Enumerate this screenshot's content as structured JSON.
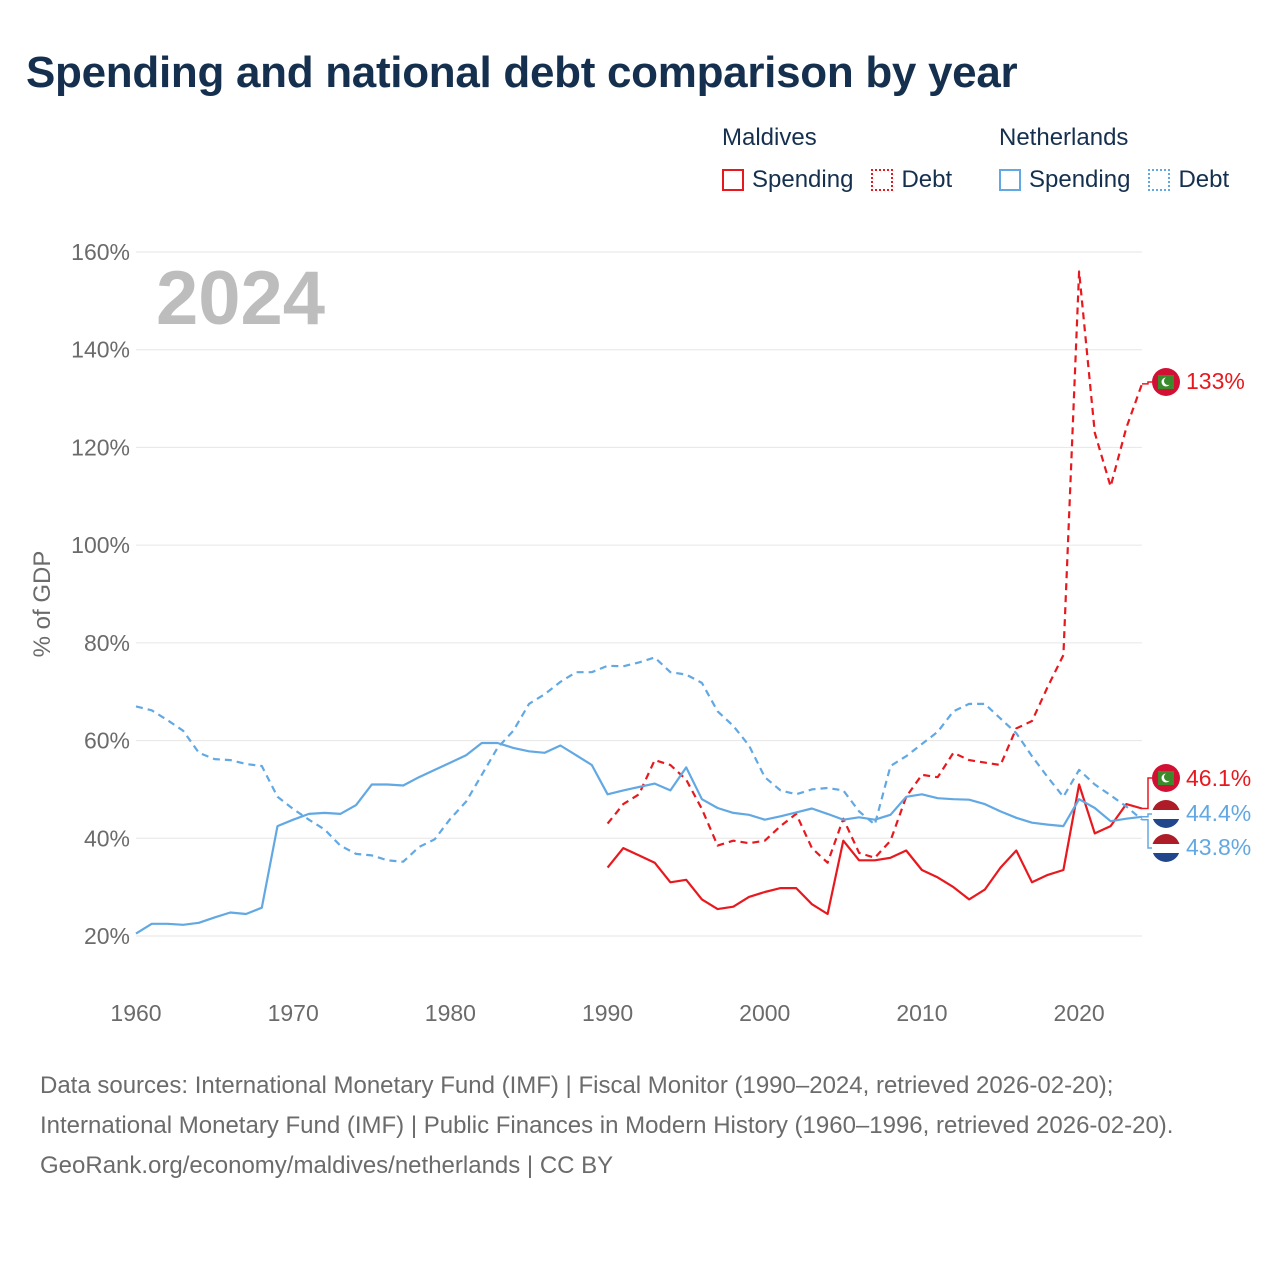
{
  "title": "Spending and national debt comparison by year",
  "legend": {
    "groups": [
      {
        "name": "Maldives",
        "items": [
          {
            "label": "Spending",
            "color": "#e8191e",
            "style": "solid"
          },
          {
            "label": "Debt",
            "color": "#e8191e",
            "style": "dotted"
          }
        ]
      },
      {
        "name": "Netherlands",
        "items": [
          {
            "label": "Spending",
            "color": "#62a8e3",
            "style": "solid"
          },
          {
            "label": "Debt",
            "color": "#62a8e3",
            "style": "dotted"
          }
        ]
      }
    ]
  },
  "footer": {
    "sources": "Data sources: International Monetary Fund (IMF) | Fiscal Monitor (1990–2024, retrieved 2026-02-20); International Monetary Fund (IMF) | Public Finances in Modern History (1960–1996, retrieved 2026-02-20).",
    "credit": "GeoRank.org/economy/maldives/netherlands | CC BY"
  },
  "chart_data": {
    "type": "line",
    "title": "Spending and national debt comparison by year",
    "year_watermark": "2024",
    "xlabel": "",
    "ylabel": "% of GDP",
    "xlim": [
      1960,
      2024
    ],
    "ylim": [
      10,
      162
    ],
    "x_ticks": [
      1960,
      1970,
      1980,
      1990,
      2000,
      2010,
      2020
    ],
    "y_ticks": [
      20,
      40,
      60,
      80,
      100,
      120,
      140,
      160
    ],
    "y_tick_labels": [
      "20%",
      "40%",
      "60%",
      "80%",
      "100%",
      "120%",
      "140%",
      "160%"
    ],
    "grid": true,
    "series": [
      {
        "name": "Maldives Spending",
        "color": "#e8191e",
        "dash": "solid",
        "end_label": "46.1%",
        "points": [
          [
            1990,
            34
          ],
          [
            1991,
            38
          ],
          [
            1992,
            36.5
          ],
          [
            1993,
            35
          ],
          [
            1994,
            31
          ],
          [
            1995,
            31.5
          ],
          [
            1996,
            27.5
          ],
          [
            1997,
            25.5
          ],
          [
            1998,
            26
          ],
          [
            1999,
            28
          ],
          [
            2000,
            29
          ],
          [
            2001,
            29.8
          ],
          [
            2002,
            29.8
          ],
          [
            2003,
            26.5
          ],
          [
            2004,
            24.5
          ],
          [
            2005,
            39.5
          ],
          [
            2006,
            35.5
          ],
          [
            2007,
            35.5
          ],
          [
            2008,
            36
          ],
          [
            2009,
            37.5
          ],
          [
            2010,
            33.5
          ],
          [
            2011,
            32
          ],
          [
            2012,
            30
          ],
          [
            2013,
            27.5
          ],
          [
            2014,
            29.5
          ],
          [
            2015,
            34
          ],
          [
            2016,
            37.5
          ],
          [
            2017,
            31
          ],
          [
            2018,
            32.5
          ],
          [
            2019,
            33.5
          ],
          [
            2020,
            51
          ],
          [
            2021,
            41
          ],
          [
            2022,
            42.5
          ],
          [
            2023,
            47
          ],
          [
            2024,
            46.1
          ]
        ]
      },
      {
        "name": "Maldives Debt",
        "color": "#e8191e",
        "dash": "dashed",
        "end_label": "133%",
        "points": [
          [
            1990,
            43
          ],
          [
            1991,
            47
          ],
          [
            1992,
            49
          ],
          [
            1993,
            56
          ],
          [
            1994,
            55
          ],
          [
            1995,
            52
          ],
          [
            1996,
            46
          ],
          [
            1997,
            38.5
          ],
          [
            1998,
            39.5
          ],
          [
            1999,
            39
          ],
          [
            2000,
            39.5
          ],
          [
            2001,
            42.5
          ],
          [
            2002,
            45
          ],
          [
            2003,
            38
          ],
          [
            2004,
            35
          ],
          [
            2005,
            44
          ],
          [
            2006,
            37
          ],
          [
            2007,
            36
          ],
          [
            2008,
            39.5
          ],
          [
            2009,
            48.5
          ],
          [
            2010,
            53
          ],
          [
            2011,
            52.5
          ],
          [
            2012,
            57.5
          ],
          [
            2013,
            56
          ],
          [
            2014,
            55.5
          ],
          [
            2015,
            55
          ],
          [
            2016,
            62.5
          ],
          [
            2017,
            64
          ],
          [
            2018,
            71
          ],
          [
            2019,
            77.5
          ],
          [
            2020,
            156
          ],
          [
            2021,
            123
          ],
          [
            2022,
            112
          ],
          [
            2023,
            124
          ],
          [
            2024,
            133
          ]
        ]
      },
      {
        "name": "Netherlands Spending",
        "color": "#62a8e3",
        "dash": "solid",
        "end_label": "44.4%",
        "points": [
          [
            1960,
            20.5
          ],
          [
            1961,
            22.5
          ],
          [
            1962,
            22.5
          ],
          [
            1963,
            22.3
          ],
          [
            1964,
            22.7
          ],
          [
            1965,
            23.8
          ],
          [
            1966,
            24.8
          ],
          [
            1967,
            24.5
          ],
          [
            1968,
            25.8
          ],
          [
            1969,
            42.5
          ],
          [
            1970,
            43.8
          ],
          [
            1971,
            45
          ],
          [
            1972,
            45.2
          ],
          [
            1973,
            45
          ],
          [
            1974,
            46.8
          ],
          [
            1975,
            51
          ],
          [
            1976,
            51
          ],
          [
            1977,
            50.8
          ],
          [
            1978,
            52.5
          ],
          [
            1979,
            54
          ],
          [
            1980,
            55.5
          ],
          [
            1981,
            57
          ],
          [
            1982,
            59.5
          ],
          [
            1983,
            59.5
          ],
          [
            1984,
            58.5
          ],
          [
            1985,
            57.8
          ],
          [
            1986,
            57.5
          ],
          [
            1987,
            59
          ],
          [
            1988,
            57
          ],
          [
            1989,
            55
          ],
          [
            1990,
            49
          ],
          [
            1991,
            49.8
          ],
          [
            1992,
            50.5
          ],
          [
            1993,
            51.2
          ],
          [
            1994,
            49.8
          ],
          [
            1995,
            54.5
          ],
          [
            1996,
            48
          ],
          [
            1997,
            46.2
          ],
          [
            1998,
            45.2
          ],
          [
            1999,
            44.8
          ],
          [
            2000,
            43.8
          ],
          [
            2001,
            44.5
          ],
          [
            2002,
            45.3
          ],
          [
            2003,
            46.1
          ],
          [
            2004,
            45
          ],
          [
            2005,
            43.8
          ],
          [
            2006,
            44.3
          ],
          [
            2007,
            43.8
          ],
          [
            2008,
            44.8
          ],
          [
            2009,
            48.5
          ],
          [
            2010,
            49
          ],
          [
            2011,
            48.2
          ],
          [
            2012,
            48
          ],
          [
            2013,
            47.9
          ],
          [
            2014,
            47
          ],
          [
            2015,
            45.5
          ],
          [
            2016,
            44.2
          ],
          [
            2017,
            43.2
          ],
          [
            2018,
            42.8
          ],
          [
            2019,
            42.5
          ],
          [
            2020,
            48
          ],
          [
            2021,
            46.2
          ],
          [
            2022,
            43.5
          ],
          [
            2023,
            44
          ],
          [
            2024,
            44.4
          ]
        ]
      },
      {
        "name": "Netherlands Debt",
        "color": "#62a8e3",
        "dash": "dashed",
        "end_label": "43.8%",
        "points": [
          [
            1960,
            67
          ],
          [
            1961,
            66.2
          ],
          [
            1962,
            64.2
          ],
          [
            1963,
            62
          ],
          [
            1964,
            57.5
          ],
          [
            1965,
            56.2
          ],
          [
            1966,
            56
          ],
          [
            1967,
            55.2
          ],
          [
            1968,
            54.8
          ],
          [
            1969,
            48.5
          ],
          [
            1970,
            46
          ],
          [
            1971,
            43.8
          ],
          [
            1972,
            41.8
          ],
          [
            1973,
            38.5
          ],
          [
            1974,
            36.8
          ],
          [
            1975,
            36.5
          ],
          [
            1976,
            35.5
          ],
          [
            1977,
            35.2
          ],
          [
            1978,
            38.2
          ],
          [
            1979,
            39.8
          ],
          [
            1980,
            44
          ],
          [
            1981,
            47.5
          ],
          [
            1982,
            53
          ],
          [
            1983,
            58.5
          ],
          [
            1984,
            62
          ],
          [
            1985,
            67.5
          ],
          [
            1986,
            69.5
          ],
          [
            1987,
            72
          ],
          [
            1988,
            74
          ],
          [
            1989,
            74
          ],
          [
            1990,
            75.3
          ],
          [
            1991,
            75.2
          ],
          [
            1992,
            76
          ],
          [
            1993,
            77
          ],
          [
            1994,
            74
          ],
          [
            1995,
            73.5
          ],
          [
            1996,
            71.8
          ],
          [
            1997,
            66
          ],
          [
            1998,
            63
          ],
          [
            1999,
            59
          ],
          [
            2000,
            52.5
          ],
          [
            2001,
            49.8
          ],
          [
            2002,
            49
          ],
          [
            2003,
            50
          ],
          [
            2004,
            50.3
          ],
          [
            2005,
            49.8
          ],
          [
            2006,
            45.5
          ],
          [
            2007,
            42.8
          ],
          [
            2008,
            54.8
          ],
          [
            2009,
            56.8
          ],
          [
            2010,
            59.3
          ],
          [
            2011,
            61.8
          ],
          [
            2012,
            66
          ],
          [
            2013,
            67.5
          ],
          [
            2014,
            67.5
          ],
          [
            2015,
            64.5
          ],
          [
            2016,
            61.5
          ],
          [
            2017,
            56.8
          ],
          [
            2018,
            52.5
          ],
          [
            2019,
            48.5
          ],
          [
            2020,
            54
          ],
          [
            2021,
            51
          ],
          [
            2022,
            48.8
          ],
          [
            2023,
            46.5
          ],
          [
            2024,
            43.8
          ]
        ]
      }
    ]
  }
}
